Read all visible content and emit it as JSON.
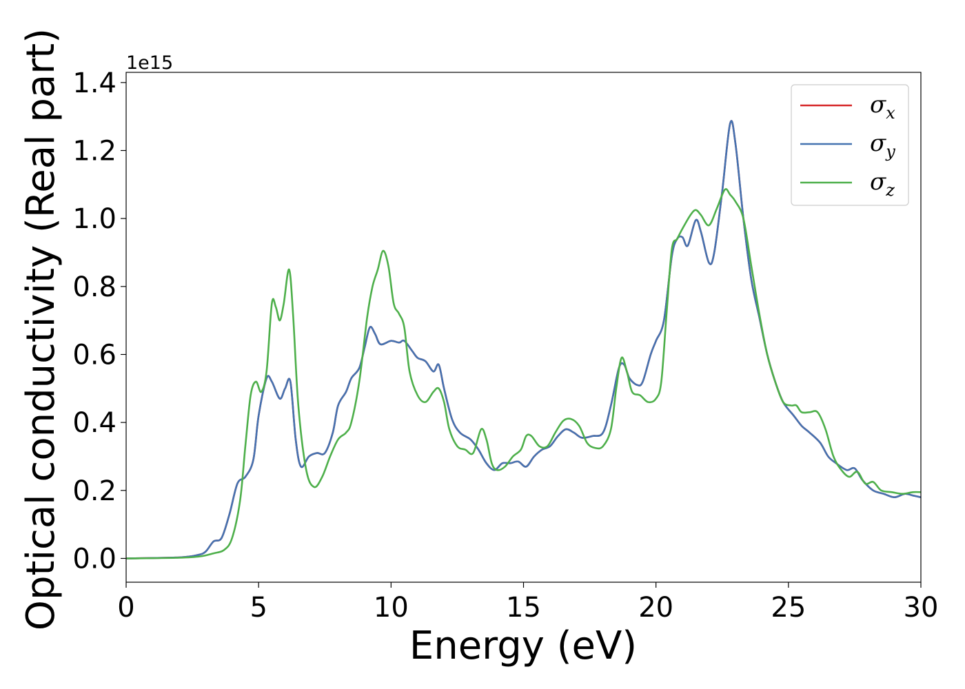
{
  "chart_data": {
    "type": "line",
    "title": "",
    "xlabel": "Energy (eV)",
    "ylabel": "Optical conductivity (Real part)",
    "y_offset_text": "1e15",
    "xlim": [
      0,
      30
    ],
    "ylim": [
      -0.07,
      1.43
    ],
    "xticks": [
      0,
      5,
      10,
      15,
      20,
      25,
      30
    ],
    "xtick_labels": [
      "0",
      "5",
      "10",
      "15",
      "20",
      "25",
      "30"
    ],
    "yticks": [
      0.0,
      0.2,
      0.4,
      0.6,
      0.8,
      1.0,
      1.2,
      1.4
    ],
    "ytick_labels": [
      "0.0",
      "0.2",
      "0.4",
      "0.6",
      "0.8",
      "1.0",
      "1.2",
      "1.4"
    ],
    "grid": false,
    "legend_position": "top-right",
    "series": [
      {
        "name": "σx",
        "symbol": "σ",
        "subscript": "x",
        "color": "#d62728",
        "points": [
          [
            0,
            0
          ],
          [
            2,
            0.003
          ],
          [
            2.7,
            0.01
          ],
          [
            3.0,
            0.02
          ],
          [
            3.3,
            0.05
          ],
          [
            3.6,
            0.06
          ],
          [
            3.9,
            0.13
          ],
          [
            4.2,
            0.22
          ],
          [
            4.5,
            0.24
          ],
          [
            4.8,
            0.29
          ],
          [
            5.0,
            0.42
          ],
          [
            5.3,
            0.53
          ],
          [
            5.5,
            0.52
          ],
          [
            5.8,
            0.47
          ],
          [
            6.0,
            0.5
          ],
          [
            6.2,
            0.52
          ],
          [
            6.4,
            0.35
          ],
          [
            6.6,
            0.27
          ],
          [
            6.9,
            0.3
          ],
          [
            7.2,
            0.31
          ],
          [
            7.5,
            0.31
          ],
          [
            7.8,
            0.37
          ],
          [
            8.0,
            0.45
          ],
          [
            8.3,
            0.49
          ],
          [
            8.5,
            0.53
          ],
          [
            8.8,
            0.56
          ],
          [
            9.0,
            0.62
          ],
          [
            9.2,
            0.68
          ],
          [
            9.4,
            0.66
          ],
          [
            9.6,
            0.63
          ],
          [
            10.0,
            0.64
          ],
          [
            10.3,
            0.635
          ],
          [
            10.5,
            0.64
          ],
          [
            10.8,
            0.61
          ],
          [
            11.0,
            0.59
          ],
          [
            11.3,
            0.58
          ],
          [
            11.6,
            0.55
          ],
          [
            11.8,
            0.57
          ],
          [
            12.0,
            0.5
          ],
          [
            12.3,
            0.41
          ],
          [
            12.6,
            0.37
          ],
          [
            13.0,
            0.35
          ],
          [
            13.3,
            0.32
          ],
          [
            13.6,
            0.28
          ],
          [
            13.9,
            0.26
          ],
          [
            14.2,
            0.28
          ],
          [
            14.5,
            0.28
          ],
          [
            14.8,
            0.285
          ],
          [
            15.1,
            0.27
          ],
          [
            15.4,
            0.3
          ],
          [
            15.7,
            0.32
          ],
          [
            16.0,
            0.33
          ],
          [
            16.3,
            0.36
          ],
          [
            16.6,
            0.38
          ],
          [
            16.9,
            0.37
          ],
          [
            17.2,
            0.355
          ],
          [
            17.6,
            0.36
          ],
          [
            18.0,
            0.37
          ],
          [
            18.3,
            0.45
          ],
          [
            18.6,
            0.56
          ],
          [
            18.8,
            0.57
          ],
          [
            19.0,
            0.53
          ],
          [
            19.3,
            0.51
          ],
          [
            19.5,
            0.52
          ],
          [
            19.8,
            0.6
          ],
          [
            20.0,
            0.64
          ],
          [
            20.3,
            0.7
          ],
          [
            20.6,
            0.89
          ],
          [
            20.8,
            0.94
          ],
          [
            21.0,
            0.945
          ],
          [
            21.2,
            0.92
          ],
          [
            21.5,
            0.995
          ],
          [
            21.7,
            0.96
          ],
          [
            22.0,
            0.87
          ],
          [
            22.2,
            0.9
          ],
          [
            22.5,
            1.08
          ],
          [
            22.8,
            1.28
          ],
          [
            23.0,
            1.22
          ],
          [
            23.3,
            1.0
          ],
          [
            23.6,
            0.82
          ],
          [
            23.9,
            0.71
          ],
          [
            24.2,
            0.6
          ],
          [
            24.5,
            0.52
          ],
          [
            24.8,
            0.46
          ],
          [
            25.2,
            0.42
          ],
          [
            25.5,
            0.39
          ],
          [
            25.8,
            0.37
          ],
          [
            26.2,
            0.34
          ],
          [
            26.5,
            0.3
          ],
          [
            26.8,
            0.28
          ],
          [
            27.2,
            0.26
          ],
          [
            27.5,
            0.265
          ],
          [
            27.8,
            0.23
          ],
          [
            28.2,
            0.2
          ],
          [
            28.6,
            0.19
          ],
          [
            29.0,
            0.18
          ],
          [
            29.4,
            0.19
          ],
          [
            29.7,
            0.185
          ],
          [
            30,
            0.18
          ]
        ]
      },
      {
        "name": "σy",
        "symbol": "σ",
        "subscript": "y",
        "color": "#4472b0",
        "points": [
          [
            0,
            0
          ],
          [
            2,
            0.003
          ],
          [
            2.7,
            0.01
          ],
          [
            3.0,
            0.02
          ],
          [
            3.3,
            0.05
          ],
          [
            3.6,
            0.06
          ],
          [
            3.9,
            0.13
          ],
          [
            4.2,
            0.22
          ],
          [
            4.5,
            0.24
          ],
          [
            4.8,
            0.29
          ],
          [
            5.0,
            0.42
          ],
          [
            5.3,
            0.53
          ],
          [
            5.5,
            0.52
          ],
          [
            5.8,
            0.47
          ],
          [
            6.0,
            0.5
          ],
          [
            6.2,
            0.52
          ],
          [
            6.4,
            0.35
          ],
          [
            6.6,
            0.27
          ],
          [
            6.9,
            0.3
          ],
          [
            7.2,
            0.31
          ],
          [
            7.5,
            0.31
          ],
          [
            7.8,
            0.37
          ],
          [
            8.0,
            0.45
          ],
          [
            8.3,
            0.49
          ],
          [
            8.5,
            0.53
          ],
          [
            8.8,
            0.56
          ],
          [
            9.0,
            0.62
          ],
          [
            9.2,
            0.68
          ],
          [
            9.4,
            0.66
          ],
          [
            9.6,
            0.63
          ],
          [
            10.0,
            0.64
          ],
          [
            10.3,
            0.635
          ],
          [
            10.5,
            0.64
          ],
          [
            10.8,
            0.61
          ],
          [
            11.0,
            0.59
          ],
          [
            11.3,
            0.58
          ],
          [
            11.6,
            0.55
          ],
          [
            11.8,
            0.57
          ],
          [
            12.0,
            0.5
          ],
          [
            12.3,
            0.41
          ],
          [
            12.6,
            0.37
          ],
          [
            13.0,
            0.35
          ],
          [
            13.3,
            0.32
          ],
          [
            13.6,
            0.28
          ],
          [
            13.9,
            0.26
          ],
          [
            14.2,
            0.28
          ],
          [
            14.5,
            0.28
          ],
          [
            14.8,
            0.285
          ],
          [
            15.1,
            0.27
          ],
          [
            15.4,
            0.3
          ],
          [
            15.7,
            0.32
          ],
          [
            16.0,
            0.33
          ],
          [
            16.3,
            0.36
          ],
          [
            16.6,
            0.38
          ],
          [
            16.9,
            0.37
          ],
          [
            17.2,
            0.355
          ],
          [
            17.6,
            0.36
          ],
          [
            18.0,
            0.37
          ],
          [
            18.3,
            0.45
          ],
          [
            18.6,
            0.56
          ],
          [
            18.8,
            0.57
          ],
          [
            19.0,
            0.53
          ],
          [
            19.3,
            0.51
          ],
          [
            19.5,
            0.52
          ],
          [
            19.8,
            0.6
          ],
          [
            20.0,
            0.64
          ],
          [
            20.3,
            0.7
          ],
          [
            20.6,
            0.89
          ],
          [
            20.8,
            0.94
          ],
          [
            21.0,
            0.945
          ],
          [
            21.2,
            0.92
          ],
          [
            21.5,
            0.995
          ],
          [
            21.7,
            0.96
          ],
          [
            22.0,
            0.87
          ],
          [
            22.2,
            0.9
          ],
          [
            22.5,
            1.08
          ],
          [
            22.8,
            1.28
          ],
          [
            23.0,
            1.22
          ],
          [
            23.3,
            1.0
          ],
          [
            23.6,
            0.82
          ],
          [
            23.9,
            0.71
          ],
          [
            24.2,
            0.6
          ],
          [
            24.5,
            0.52
          ],
          [
            24.8,
            0.46
          ],
          [
            25.2,
            0.42
          ],
          [
            25.5,
            0.39
          ],
          [
            25.8,
            0.37
          ],
          [
            26.2,
            0.34
          ],
          [
            26.5,
            0.3
          ],
          [
            26.8,
            0.28
          ],
          [
            27.2,
            0.26
          ],
          [
            27.5,
            0.265
          ],
          [
            27.8,
            0.23
          ],
          [
            28.2,
            0.2
          ],
          [
            28.6,
            0.19
          ],
          [
            29.0,
            0.18
          ],
          [
            29.4,
            0.19
          ],
          [
            29.7,
            0.185
          ],
          [
            30,
            0.18
          ]
        ]
      },
      {
        "name": "σz",
        "symbol": "σ",
        "subscript": "z",
        "color": "#4daf4a",
        "points": [
          [
            0,
            0
          ],
          [
            2,
            0.002
          ],
          [
            2.8,
            0.006
          ],
          [
            3.3,
            0.015
          ],
          [
            3.7,
            0.025
          ],
          [
            4.0,
            0.06
          ],
          [
            4.3,
            0.17
          ],
          [
            4.5,
            0.33
          ],
          [
            4.7,
            0.48
          ],
          [
            4.9,
            0.52
          ],
          [
            5.1,
            0.49
          ],
          [
            5.3,
            0.55
          ],
          [
            5.5,
            0.75
          ],
          [
            5.65,
            0.74
          ],
          [
            5.8,
            0.7
          ],
          [
            5.95,
            0.75
          ],
          [
            6.15,
            0.85
          ],
          [
            6.3,
            0.72
          ],
          [
            6.5,
            0.45
          ],
          [
            6.8,
            0.26
          ],
          [
            7.1,
            0.21
          ],
          [
            7.4,
            0.24
          ],
          [
            7.7,
            0.3
          ],
          [
            8.0,
            0.35
          ],
          [
            8.3,
            0.37
          ],
          [
            8.5,
            0.4
          ],
          [
            8.8,
            0.52
          ],
          [
            9.1,
            0.71
          ],
          [
            9.3,
            0.8
          ],
          [
            9.5,
            0.85
          ],
          [
            9.7,
            0.905
          ],
          [
            9.9,
            0.86
          ],
          [
            10.1,
            0.75
          ],
          [
            10.3,
            0.72
          ],
          [
            10.5,
            0.68
          ],
          [
            10.7,
            0.55
          ],
          [
            11.0,
            0.48
          ],
          [
            11.3,
            0.46
          ],
          [
            11.6,
            0.49
          ],
          [
            11.8,
            0.5
          ],
          [
            12.0,
            0.46
          ],
          [
            12.2,
            0.38
          ],
          [
            12.5,
            0.33
          ],
          [
            12.8,
            0.32
          ],
          [
            13.1,
            0.31
          ],
          [
            13.4,
            0.38
          ],
          [
            13.6,
            0.35
          ],
          [
            13.8,
            0.28
          ],
          [
            14.0,
            0.26
          ],
          [
            14.3,
            0.27
          ],
          [
            14.6,
            0.3
          ],
          [
            14.9,
            0.32
          ],
          [
            15.1,
            0.36
          ],
          [
            15.3,
            0.36
          ],
          [
            15.6,
            0.33
          ],
          [
            15.9,
            0.33
          ],
          [
            16.2,
            0.37
          ],
          [
            16.5,
            0.405
          ],
          [
            16.8,
            0.41
          ],
          [
            17.1,
            0.39
          ],
          [
            17.4,
            0.34
          ],
          [
            17.7,
            0.325
          ],
          [
            18.0,
            0.33
          ],
          [
            18.3,
            0.38
          ],
          [
            18.5,
            0.5
          ],
          [
            18.7,
            0.59
          ],
          [
            18.9,
            0.55
          ],
          [
            19.1,
            0.49
          ],
          [
            19.4,
            0.48
          ],
          [
            19.7,
            0.46
          ],
          [
            20.0,
            0.47
          ],
          [
            20.2,
            0.52
          ],
          [
            20.4,
            0.72
          ],
          [
            20.6,
            0.91
          ],
          [
            20.8,
            0.94
          ],
          [
            21.0,
            0.97
          ],
          [
            21.3,
            1.01
          ],
          [
            21.5,
            1.025
          ],
          [
            21.7,
            1.01
          ],
          [
            22.0,
            0.98
          ],
          [
            22.3,
            1.03
          ],
          [
            22.6,
            1.085
          ],
          [
            22.8,
            1.07
          ],
          [
            23.0,
            1.05
          ],
          [
            23.3,
            1.0
          ],
          [
            23.6,
            0.86
          ],
          [
            23.9,
            0.72
          ],
          [
            24.2,
            0.6
          ],
          [
            24.5,
            0.52
          ],
          [
            24.8,
            0.46
          ],
          [
            25.1,
            0.45
          ],
          [
            25.3,
            0.45
          ],
          [
            25.5,
            0.43
          ],
          [
            25.8,
            0.43
          ],
          [
            26.1,
            0.43
          ],
          [
            26.4,
            0.38
          ],
          [
            26.7,
            0.3
          ],
          [
            27.0,
            0.26
          ],
          [
            27.3,
            0.24
          ],
          [
            27.6,
            0.255
          ],
          [
            27.9,
            0.22
          ],
          [
            28.2,
            0.225
          ],
          [
            28.5,
            0.2
          ],
          [
            28.9,
            0.195
          ],
          [
            29.3,
            0.19
          ],
          [
            29.7,
            0.195
          ],
          [
            30,
            0.195
          ]
        ]
      }
    ]
  }
}
